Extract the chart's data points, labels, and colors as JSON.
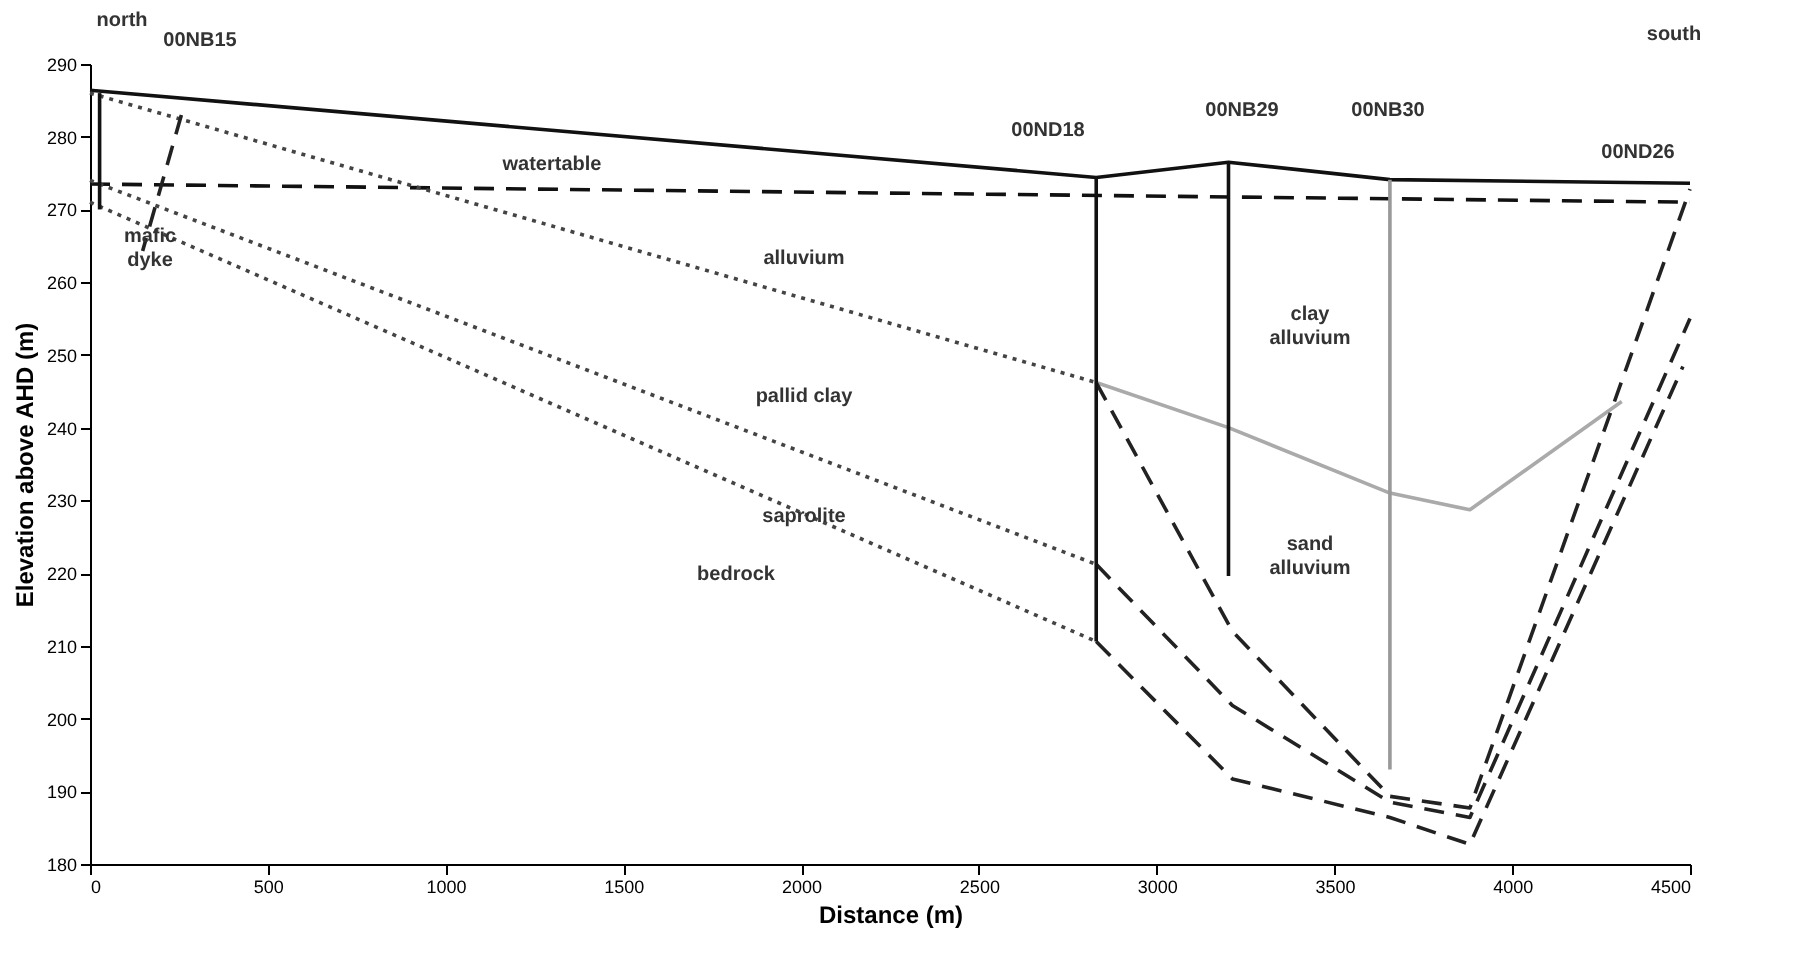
{
  "chart_data": {
    "type": "line",
    "xlabel": "Distance (m)",
    "ylabel": "Elevation above AHD (m)",
    "xlim": [
      0,
      4500
    ],
    "xticks": [
      0,
      500,
      1000,
      1500,
      2000,
      2500,
      3000,
      3500,
      4000,
      4500
    ],
    "ylim": [
      180,
      290
    ],
    "yticks": [
      180,
      190,
      200,
      210,
      220,
      230,
      240,
      250,
      260,
      270,
      280,
      290
    ],
    "grid": false,
    "marker": "none",
    "series": [
      {
        "color": "#111111",
        "line_style": "solid",
        "x": [
          0,
          2830,
          3202,
          3656,
          4500
        ],
        "values": [
          286.4,
          274.4,
          276.5,
          274.1,
          273.6
        ]
      },
      {
        "color": "#111111",
        "line_style": "dashed",
        "x": [
          0,
          4500
        ],
        "values": [
          273.5,
          271
        ]
      },
      {
        "color": "#444444",
        "line_style": "dotted",
        "x": [
          0,
          2830
        ],
        "values": [
          286,
          246.2
        ]
      },
      {
        "color": "#444444",
        "line_style": "dotted",
        "x": [
          0,
          2830
        ],
        "values": [
          274,
          221.2
        ]
      },
      {
        "color": "#444444",
        "line_style": "dotted",
        "x": [
          0,
          2830
        ],
        "values": [
          271,
          210.6
        ]
      },
      {
        "color": "#aaaaaa",
        "line_style": "solid",
        "x": [
          2830,
          3202,
          3656,
          3881,
          4308
        ],
        "values": [
          246.2,
          240,
          231,
          228.7,
          243.6
        ]
      },
      {
        "color": "#222222",
        "line_style": "dashed",
        "x": [
          2830,
          3213,
          3656,
          3881,
          4500
        ],
        "values": [
          246.2,
          212,
          189.3,
          187.7,
          272.8
        ]
      },
      {
        "color": "#222222",
        "line_style": "dashed",
        "x": [
          2830,
          3213,
          3656,
          3881,
          4500
        ],
        "values": [
          221.2,
          201.8,
          188.5,
          186.4,
          255
        ]
      },
      {
        "color": "#222222",
        "line_style": "dashed",
        "x": [
          2830,
          3213,
          3656,
          3881,
          4480
        ],
        "values": [
          210.6,
          191.7,
          186.4,
          182.7,
          248.4
        ]
      },
      {
        "color": "#222222",
        "line_style": "dashed",
        "x": [
          257,
          148
        ],
        "values": [
          283,
          264.3
        ]
      },
      {
        "color": "#111111",
        "line_style": "solid",
        "x": [
          27,
          27
        ],
        "values": [
          286,
          270
        ]
      },
      {
        "color": "#111111",
        "line_style": "solid",
        "x": [
          2830,
          2830
        ],
        "values": [
          274.4,
          210.6
        ]
      },
      {
        "color": "#111111",
        "line_style": "solid",
        "x": [
          3202,
          3202
        ],
        "values": [
          276.5,
          219.6
        ]
      },
      {
        "color": "#999999",
        "line_style": "solid",
        "x": [
          3656,
          3656
        ],
        "values": [
          274.1,
          193
        ]
      }
    ],
    "annotations": [
      "north",
      "00NB15",
      "south",
      "watertable",
      "mafic dyke",
      "alluvium",
      "pallid clay",
      "saprolite",
      "bedrock",
      "00ND18",
      "00NB29",
      "00NB30",
      "00ND26",
      "clay alluvium",
      "sand alluvium"
    ]
  }
}
